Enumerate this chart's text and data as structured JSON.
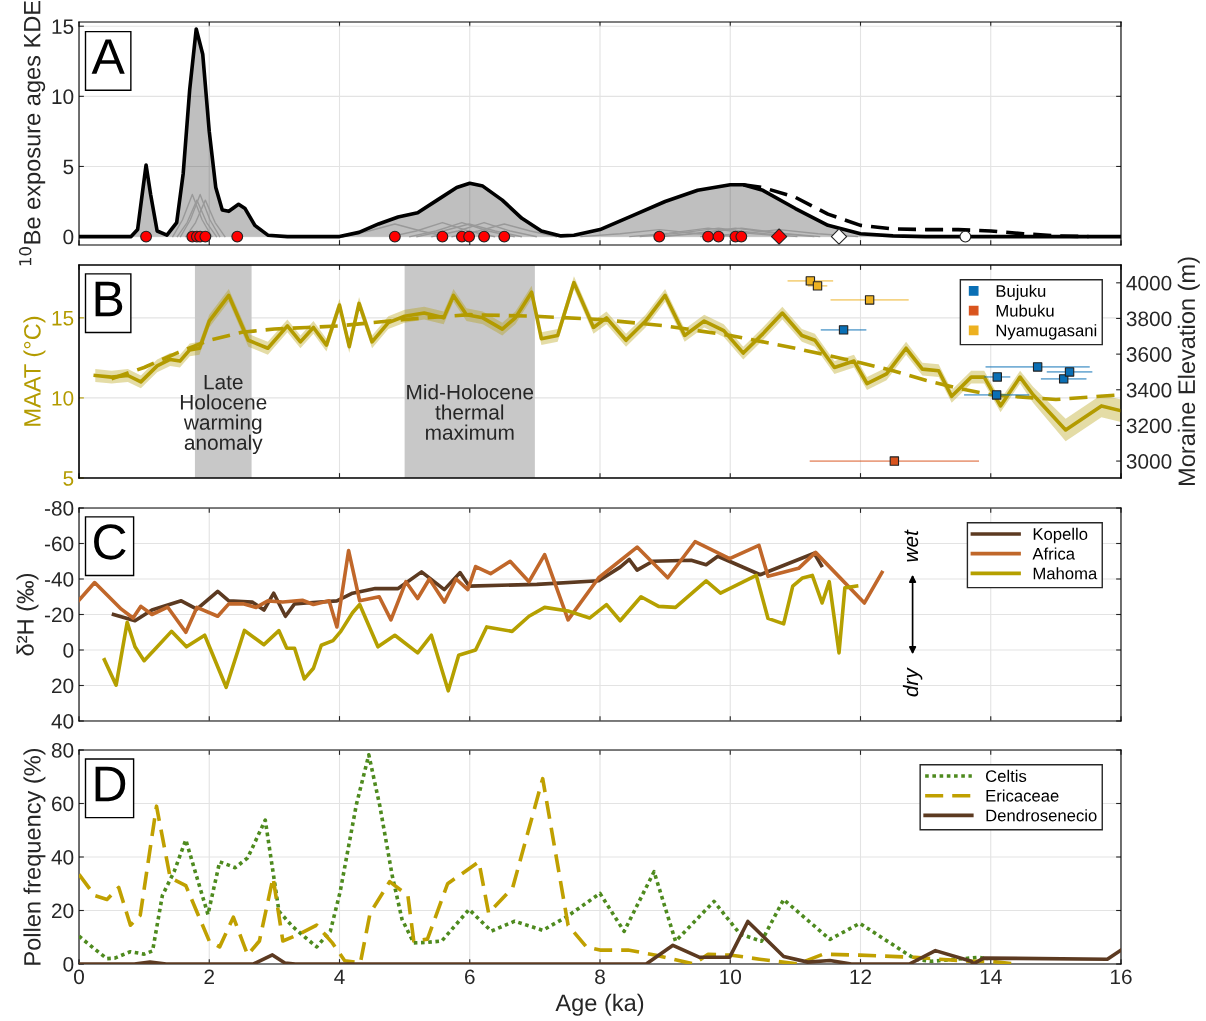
{
  "chart_data": [
    {
      "type": "line",
      "ylabel": "$^{10}$Be exposure ages KDE",
      "xlim": [
        0,
        16
      ],
      "xticks": [
        0,
        2,
        4,
        6,
        8,
        10,
        12,
        14,
        16
      ],
      "ylim": [
        -0.6,
        15.3
      ],
      "yticks": [
        0,
        5,
        10,
        15
      ],
      "grid": true,
      "tick_labels": "y",
      "annotations": [
        "A"
      ],
      "series": [
        {
          "type": "line",
          "color": "#999999",
          "x": [
            1.44,
            1.59,
            1.74,
            1.89,
            2.04
          ],
          "values": [
            0,
            1.2,
            3.0,
            1.2,
            0
          ]
        },
        {
          "type": "line",
          "color": "#999999",
          "x": [
            1.51,
            1.66,
            1.81,
            1.96,
            2.11
          ],
          "values": [
            0,
            1.0,
            2.6,
            1.0,
            0
          ]
        },
        {
          "type": "line",
          "color": "#999999",
          "x": [
            1.56,
            1.71,
            1.86,
            2.01,
            2.16
          ],
          "values": [
            0,
            1.2,
            3.0,
            1.2,
            0
          ]
        },
        {
          "type": "line",
          "color": "#999999",
          "x": [
            1.64,
            1.79,
            1.94,
            2.09,
            2.24
          ],
          "values": [
            0,
            1.0,
            2.6,
            1.0,
            0
          ]
        },
        {
          "type": "line",
          "color": "#999999",
          "x": [
            4.05,
            4.45,
            4.85,
            5.25,
            5.65
          ],
          "values": [
            0,
            0.4,
            0.9,
            0.4,
            0
          ]
        },
        {
          "type": "line",
          "color": "#999999",
          "x": [
            4.78,
            5.18,
            5.58,
            5.98,
            6.38
          ],
          "values": [
            0,
            0.4,
            1.0,
            0.4,
            0
          ]
        },
        {
          "type": "line",
          "color": "#999999",
          "x": [
            5.08,
            5.48,
            5.88,
            6.28,
            6.68
          ],
          "values": [
            0,
            0.4,
            1.0,
            0.4,
            0
          ]
        },
        {
          "type": "line",
          "color": "#999999",
          "x": [
            5.19,
            5.59,
            5.99,
            6.39,
            6.79
          ],
          "values": [
            0,
            0.4,
            0.9,
            0.4,
            0
          ]
        },
        {
          "type": "line",
          "color": "#999999",
          "x": [
            5.42,
            5.82,
            6.22,
            6.62,
            7.02
          ],
          "values": [
            0,
            0.4,
            1.0,
            0.4,
            0
          ]
        },
        {
          "type": "line",
          "color": "#999999",
          "x": [
            5.73,
            6.13,
            6.53,
            6.93,
            7.33
          ],
          "values": [
            0,
            0.4,
            0.9,
            0.4,
            0
          ]
        },
        {
          "type": "line",
          "color": "#999999",
          "x": [
            7.71,
            8.31,
            8.91,
            9.51,
            10.11
          ],
          "values": [
            0,
            0.2,
            0.5,
            0.2,
            0
          ]
        },
        {
          "type": "line",
          "color": "#999999",
          "x": [
            8.46,
            9.06,
            9.66,
            10.26,
            10.86
          ],
          "values": [
            0,
            0.25,
            0.6,
            0.25,
            0
          ]
        },
        {
          "type": "line",
          "color": "#999999",
          "x": [
            8.62,
            9.22,
            9.82,
            10.42,
            11.02
          ],
          "values": [
            0,
            0.25,
            0.6,
            0.25,
            0
          ]
        },
        {
          "type": "line",
          "color": "#999999",
          "x": [
            8.88,
            9.48,
            10.08,
            10.68,
            11.28
          ],
          "values": [
            0,
            0.25,
            0.6,
            0.25,
            0
          ]
        },
        {
          "type": "line",
          "color": "#999999",
          "x": [
            8.97,
            9.57,
            10.17,
            10.77,
            11.37
          ],
          "values": [
            0,
            0.25,
            0.6,
            0.25,
            0
          ]
        },
        {
          "type": "line",
          "color": "#999999",
          "x": [
            9.55,
            10.15,
            10.75,
            11.35,
            11.95
          ],
          "values": [
            0,
            0.2,
            0.5,
            0.2,
            0
          ]
        },
        {
          "type": "area",
          "color": "#000000",
          "x": [
            0,
            0.8,
            0.9,
            0.97,
            1.03,
            1.1,
            1.2,
            1.35,
            1.5,
            1.6,
            1.7,
            1.8,
            1.9,
            2.0,
            2.1,
            2.2,
            2.3,
            2.45,
            2.55,
            2.7,
            2.9,
            3.2,
            4.0,
            4.3,
            4.6,
            4.9,
            5.2,
            5.5,
            5.8,
            6.0,
            6.2,
            6.5,
            6.8,
            7.1,
            7.4,
            7.6,
            8.0,
            8.5,
            9.0,
            9.5,
            10.0,
            10.2,
            10.5,
            11.0,
            11.5,
            12.0,
            12.5,
            13.0,
            16.0
          ],
          "values": [
            0,
            0,
            0.5,
            3.0,
            5.1,
            3.0,
            0.4,
            0.1,
            1.0,
            4.5,
            10.5,
            14.8,
            13.0,
            7.5,
            3.5,
            1.9,
            1.8,
            2.3,
            2.0,
            0.8,
            0.1,
            0,
            0,
            0.3,
            0.9,
            1.4,
            1.7,
            2.6,
            3.5,
            3.8,
            3.6,
            2.6,
            1.3,
            0.4,
            0.05,
            0.1,
            0.5,
            1.5,
            2.5,
            3.3,
            3.7,
            3.7,
            3.3,
            2.0,
            0.8,
            0.2,
            0.05,
            0,
            0
          ]
        },
        {
          "type": "line",
          "color": "#000000",
          "line_style": "dashed",
          "x": [
            10.2,
            10.5,
            11.0,
            11.5,
            12.0,
            12.5,
            13.0,
            13.5,
            14.0,
            14.5,
            15.0,
            15.5
          ],
          "values": [
            3.7,
            3.5,
            2.8,
            1.6,
            0.8,
            0.55,
            0.5,
            0.5,
            0.4,
            0.2,
            0.05,
            0
          ]
        },
        {
          "type": "scatter",
          "color": "#ff0000",
          "marker": "circle",
          "x": [
            1.03,
            1.74,
            1.81,
            1.86,
            1.94,
            2.43,
            4.85,
            5.58,
            5.88,
            5.99,
            6.22,
            6.53,
            8.91,
            9.66,
            9.82,
            10.08,
            10.17
          ],
          "values": [
            0,
            0,
            0,
            0,
            0,
            0,
            0,
            0,
            0,
            0,
            0,
            0,
            0,
            0,
            0,
            0,
            0
          ]
        },
        {
          "type": "scatter",
          "color": "#ff0000",
          "marker": "diamond",
          "x": [
            10.75
          ],
          "values": [
            0
          ]
        },
        {
          "type": "scatter",
          "color": "#ffffff",
          "marker": "diamond",
          "x": [
            11.67
          ],
          "values": [
            0
          ]
        },
        {
          "type": "scatter",
          "color": "#ffffff",
          "marker": "circle",
          "x": [
            13.61
          ],
          "values": [
            0
          ]
        }
      ]
    },
    {
      "type": "line",
      "ylabel": "MAAT (°C)",
      "y2label": "Moraine Elevation (m)",
      "xlim": [
        0,
        16
      ],
      "xticks": [
        0,
        2,
        4,
        6,
        8,
        10,
        12,
        14,
        16
      ],
      "ylim": [
        5,
        18.3
      ],
      "yticks": [
        5,
        10,
        15
      ],
      "y2lim": [
        2905,
        4100
      ],
      "y2ticks": [
        3000,
        3200,
        3400,
        3600,
        3800,
        4000
      ],
      "grid": true,
      "tick_labels": "y",
      "legend": "top right",
      "annotations": [
        "B"
      ],
      "bands": [
        {
          "axis": "x",
          "from": 1.78,
          "to": 2.65,
          "label": "Late\nHolocene\nwarming\nanomaly",
          "color": "#c8c8c8"
        },
        {
          "axis": "x",
          "from": 5.0,
          "to": 7.0,
          "label": "Mid-Holocene\nthermal\nmaximum",
          "color": "#c8c8c8"
        }
      ],
      "series": [
        {
          "type": "line",
          "color": "#b39b00",
          "x": [
            0.25,
            0.5,
            0.75,
            0.95,
            1.2,
            1.4,
            1.55,
            1.7,
            1.85,
            2.0,
            2.3,
            2.6,
            2.9,
            3.2,
            3.4,
            3.6,
            3.8,
            4.0,
            4.15,
            4.3,
            4.5,
            4.75,
            5.0,
            5.3,
            5.6,
            5.75,
            5.95,
            6.2,
            6.5,
            6.7,
            6.95,
            7.1,
            7.35,
            7.6,
            7.9,
            8.1,
            8.4,
            8.7,
            9.0,
            9.3,
            9.6,
            9.9,
            10.2,
            10.5,
            10.8,
            11.1,
            11.3,
            11.6,
            11.9,
            12.1,
            12.4,
            12.7,
            12.95,
            13.2,
            13.4,
            13.7,
            13.9,
            14.15,
            14.45,
            14.65,
            15.15,
            15.7,
            16.0
          ],
          "values": [
            11.4,
            11.3,
            11.4,
            11.0,
            12.0,
            12.4,
            12.3,
            13.0,
            13.1,
            14.8,
            16.4,
            13.6,
            13.1,
            14.5,
            13.5,
            14.4,
            13.3,
            15.8,
            13.2,
            15.9,
            13.5,
            14.7,
            15.1,
            15.3,
            15.0,
            16.4,
            15.2,
            15.0,
            14.3,
            15.0,
            16.6,
            13.7,
            13.9,
            17.2,
            14.4,
            15.0,
            13.6,
            14.8,
            16.4,
            13.9,
            14.8,
            14.2,
            12.8,
            14.0,
            15.3,
            13.9,
            13.6,
            11.9,
            12.3,
            10.9,
            11.5,
            13.1,
            11.8,
            11.7,
            10.1,
            11.3,
            11.3,
            9.5,
            11.3,
            10.2,
            8.0,
            9.5,
            9.2
          ],
          "lower": [
            11.0,
            10.9,
            11.0,
            10.6,
            11.6,
            12.0,
            11.9,
            12.6,
            12.7,
            14.4,
            16.0,
            13.2,
            12.7,
            14.1,
            13.1,
            14.0,
            12.9,
            15.4,
            12.8,
            15.5,
            13.1,
            14.3,
            14.7,
            14.9,
            14.6,
            16.0,
            14.8,
            14.6,
            13.9,
            14.6,
            16.2,
            13.3,
            13.5,
            16.8,
            14.0,
            14.6,
            13.2,
            14.4,
            16.0,
            13.5,
            14.4,
            13.8,
            12.4,
            13.6,
            14.9,
            13.5,
            13.2,
            11.5,
            11.9,
            10.5,
            11.1,
            12.7,
            11.4,
            11.3,
            9.7,
            10.9,
            10.9,
            9.1,
            10.9,
            9.7,
            7.3,
            8.8,
            8.5
          ],
          "upper": [
            11.8,
            11.7,
            11.8,
            11.4,
            12.4,
            12.8,
            12.7,
            13.4,
            13.5,
            15.2,
            16.8,
            14.0,
            13.5,
            14.9,
            13.9,
            14.8,
            13.7,
            16.2,
            13.6,
            16.3,
            13.9,
            15.1,
            15.5,
            15.7,
            15.4,
            16.8,
            15.6,
            15.4,
            14.7,
            15.4,
            17.0,
            14.1,
            14.3,
            17.6,
            14.8,
            15.4,
            14.0,
            15.2,
            16.8,
            14.3,
            15.2,
            14.6,
            13.2,
            14.4,
            15.7,
            14.3,
            14.0,
            12.3,
            12.7,
            11.3,
            11.9,
            13.5,
            12.2,
            12.1,
            10.5,
            11.7,
            11.7,
            9.9,
            11.7,
            10.7,
            8.7,
            10.2,
            9.9
          ]
        },
        {
          "type": "line",
          "color": "#b39b00",
          "line_style": "dashed",
          "x": [
            0.5,
            1.0,
            1.5,
            2.0,
            2.5,
            3.0,
            3.5,
            4.0,
            5.0,
            6.0,
            7.0,
            8.0,
            9.0,
            10.0,
            11.0,
            12.0,
            12.5,
            13.0,
            13.5,
            14.0,
            15.0,
            16.0
          ],
          "values": [
            11.2,
            11.9,
            12.8,
            13.6,
            14.1,
            14.3,
            14.4,
            14.5,
            14.9,
            15.2,
            15.1,
            14.9,
            14.5,
            13.9,
            13.1,
            12.2,
            11.7,
            11.1,
            10.6,
            10.2,
            9.9,
            10.2
          ]
        },
        {
          "type": "scatter",
          "name": "Bujuku",
          "color": "#0a6fb5",
          "marker": "square",
          "axis": "y2",
          "x": [
            11.74,
            14.1,
            14.09,
            14.72,
            15.12,
            15.21
          ],
          "values": [
            3736,
            3472,
            3371,
            3528,
            3461,
            3500
          ],
          "xerrors": [
            0.35,
            0.2,
            0.5,
            0.8,
            0.35,
            0.35
          ]
        },
        {
          "type": "scatter",
          "name": "Mubuku",
          "color": "#d9541e",
          "marker": "square",
          "axis": "y2",
          "x": [
            12.52
          ],
          "values": [
            3000
          ],
          "xerrors": [
            1.3
          ]
        },
        {
          "type": "scatter",
          "name": "Nyamugasani",
          "color": "#edb120",
          "marker": "square",
          "axis": "y2",
          "x": [
            11.23,
            11.34,
            12.14
          ],
          "values": [
            4011,
            3983,
            3904
          ],
          "xerrors": [
            0.35,
            0.15,
            0.6
          ]
        }
      ]
    },
    {
      "type": "line",
      "ylabel": "δ²H (‰)",
      "xlim": [
        0,
        16
      ],
      "xticks": [
        0,
        2,
        4,
        6,
        8,
        10,
        12,
        14,
        16
      ],
      "ylim": [
        40,
        -80
      ],
      "yticks": [
        -80,
        -60,
        -40,
        -20,
        0,
        20,
        40
      ],
      "grid": true,
      "tick_labels": "y",
      "legend": "top right",
      "annotations": [
        "C",
        "wet",
        "dry"
      ],
      "series": [
        {
          "type": "line",
          "name": "Kopello",
          "color": "#5c3a21",
          "x": [
            0.53,
            0.86,
            1.12,
            1.57,
            1.81,
            2.13,
            2.3,
            2.66,
            2.84,
            2.99,
            3.17,
            3.31,
            3.49,
            3.96,
            4.2,
            4.55,
            4.9,
            5.26,
            5.61,
            5.85,
            5.99,
            7.03,
            7.98,
            8.31,
            8.45,
            8.57,
            8.81,
            9.4,
            9.63,
            9.81,
            10.46,
            11.29,
            11.4
          ],
          "values": [
            -20,
            -16.5,
            -22.5,
            -27.7,
            -23,
            -33,
            -27.7,
            -27,
            -22.5,
            -32,
            -19,
            -26,
            -26.5,
            -27.7,
            -32,
            -34.6,
            -34.6,
            -44,
            -34,
            -43.6,
            -36,
            -37,
            -39,
            -46.7,
            -51,
            -45,
            -50,
            -50.6,
            -48,
            -52.8,
            -42.4,
            -54.5,
            -47.6
          ]
        },
        {
          "type": "line",
          "name": "Africa",
          "color": "#c0672a",
          "x": [
            0,
            0.24,
            0.65,
            0.83,
            0.95,
            1.12,
            1.36,
            1.64,
            1.81,
            2.13,
            2.3,
            2.52,
            2.72,
            2.9,
            3.13,
            3.43,
            3.6,
            3.84,
            3.96,
            4.14,
            4.31,
            4.61,
            4.79,
            5.02,
            5.2,
            5.38,
            5.61,
            5.79,
            5.97,
            6.09,
            6.32,
            6.62,
            6.91,
            7.15,
            7.51,
            7.98,
            8.57,
            9.04,
            9.46,
            9.99,
            10.44,
            10.58,
            11.05,
            11.31,
            12.06,
            12.33
          ],
          "values": [
            -28,
            -38,
            -23,
            -18,
            -24.6,
            -20,
            -24.2,
            -10,
            -24,
            -19,
            -26,
            -26,
            -24,
            -27.7,
            -27,
            -28,
            -25.6,
            -27.7,
            -13,
            -56,
            -27.7,
            -30,
            -17,
            -38.5,
            -29,
            -40,
            -27,
            -40,
            -34,
            -47,
            -43,
            -50,
            -38.5,
            -53.7,
            -17,
            -40.7,
            -58,
            -40.7,
            -61,
            -51.5,
            -59,
            -41.5,
            -46,
            -55,
            -26.5,
            -43.7
          ]
        },
        {
          "type": "line",
          "name": "Mahoma",
          "color": "#b5a000",
          "x": [
            0.39,
            0.57,
            0.74,
            0.86,
            1.0,
            1.18,
            1.42,
            1.65,
            1.93,
            2.26,
            2.54,
            2.84,
            3.07,
            3.19,
            3.31,
            3.46,
            3.6,
            3.72,
            3.9,
            4.02,
            4.2,
            4.31,
            4.59,
            4.85,
            5.2,
            5.41,
            5.67,
            5.83,
            6.09,
            6.26,
            6.65,
            6.91,
            7.15,
            7.51,
            7.84,
            8.1,
            8.31,
            8.63,
            8.9,
            9.16,
            9.63,
            9.85,
            10.4,
            10.58,
            10.82,
            10.96,
            11.11,
            11.26,
            11.41,
            11.52,
            11.67,
            11.76,
            11.94
          ],
          "values": [
            5.5,
            19.8,
            -15.6,
            -1.8,
            6,
            -1,
            -10.5,
            -1.8,
            -8.3,
            21,
            -11,
            -3,
            -10.9,
            -1,
            -1,
            16.3,
            10.3,
            -2.7,
            -5.3,
            -10.5,
            -21,
            -25.6,
            -1.8,
            -8.3,
            1.6,
            -8.3,
            23,
            3,
            0,
            -13,
            -10.5,
            -19,
            -24,
            -22,
            -18,
            -25.6,
            -16.5,
            -30,
            -24.6,
            -24,
            -39,
            -32,
            -42,
            -17.8,
            -14.7,
            -36,
            -40.6,
            -42,
            -26.5,
            -38.5,
            1.6,
            -35,
            -36
          ]
        }
      ]
    },
    {
      "type": "line",
      "ylabel": "Pollen frequency (%)",
      "xlabel": "Age (ka)",
      "xlim": [
        0,
        16
      ],
      "xticks": [
        0,
        2,
        4,
        6,
        8,
        10,
        12,
        14,
        16
      ],
      "ylim": [
        0,
        80
      ],
      "yticks": [
        0,
        20,
        40,
        60,
        80
      ],
      "grid": true,
      "legend": "top right",
      "annotations": [
        "D"
      ],
      "series": [
        {
          "type": "line",
          "name": "Celtis",
          "color": "#4e8a1e",
          "line_style": "dotted",
          "x": [
            0,
            0.24,
            0.43,
            0.55,
            0.79,
            1.0,
            1.13,
            1.28,
            1.46,
            1.64,
            1.82,
            1.98,
            2.16,
            2.4,
            2.59,
            2.86,
            3.07,
            3.28,
            3.47,
            3.65,
            3.86,
            4.01,
            4.26,
            4.45,
            4.62,
            4.81,
            4.96,
            5.14,
            5.35,
            5.57,
            5.78,
            5.99,
            6.33,
            6.69,
            7.12,
            7.48,
            8.0,
            8.37,
            8.83,
            9.16,
            9.75,
            10.15,
            10.48,
            10.82,
            11.53,
            11.99,
            12.84,
            13.09,
            13.82,
            13.95
          ],
          "values": [
            10.4,
            5.6,
            2,
            2.2,
            4.6,
            3.7,
            4.9,
            25.6,
            34.5,
            46.4,
            31.6,
            18.5,
            38.2,
            36,
            39.7,
            53.8,
            19.7,
            14,
            10,
            6.4,
            12.3,
            27,
            59.7,
            78.2,
            59,
            33,
            16.7,
            7.9,
            8.1,
            8.6,
            14.5,
            20.4,
            12.3,
            16,
            12.6,
            17.5,
            26.4,
            12.2,
            34.5,
            8.5,
            23.4,
            11.2,
            8.5,
            24.1,
            9.2,
            15.2,
            1.8,
            1,
            2.5,
            1.8
          ]
        },
        {
          "type": "line",
          "name": "Ericaceae",
          "color": "#c0a000",
          "line_style": "dashed",
          "x": [
            0,
            0.24,
            0.43,
            0.61,
            0.79,
            0.94,
            1.19,
            1.4,
            1.64,
            2.0,
            2.16,
            2.37,
            2.59,
            2.77,
            2.98,
            3.13,
            3.35,
            3.65,
            3.89,
            4.08,
            4.32,
            4.47,
            4.77,
            5.05,
            5.14,
            5.35,
            5.66,
            6.14,
            6.29,
            6.66,
            7.12,
            7.51,
            7.79,
            8.0,
            8.43,
            8.86,
            9.44,
            9.66,
            10.02,
            10.45,
            11.04,
            11.43,
            11.99,
            12.84,
            13.21,
            13.7,
            14.0,
            14.38
          ],
          "values": [
            33.5,
            25.6,
            24.1,
            28.6,
            14.5,
            18.2,
            59,
            32.3,
            29.3,
            8.6,
            6.4,
            17.5,
            3.4,
            8.6,
            32.3,
            8.6,
            10.8,
            14.5,
            7.9,
            1.2,
            0.4,
            19,
            30.8,
            25.6,
            8.6,
            9.3,
            30,
            38.2,
            19,
            28.6,
            69.3,
            14.5,
            6.4,
            5.2,
            5.2,
            3.3,
            0,
            3.6,
            3.3,
            1.8,
            0,
            3.7,
            3.3,
            2.5,
            1.8,
            1,
            1,
            0
          ]
        },
        {
          "type": "line",
          "name": "Dendrosenecio",
          "color": "#5c3a21",
          "x": [
            0,
            0.85,
            1.09,
            1.34,
            2.68,
            2.97,
            3.16,
            3.32,
            8.71,
            9.12,
            9.53,
            9.99,
            10.27,
            10.82,
            11.19,
            11.53,
            11.86,
            12.75,
            13.15,
            13.7,
            13.73,
            13.89,
            15.79,
            16.0
          ],
          "values": [
            0,
            0,
            0.7,
            0,
            0,
            3.4,
            0.4,
            0,
            0,
            7,
            2.5,
            2.5,
            15.9,
            2.8,
            0.7,
            1.3,
            0,
            0,
            5,
            1,
            0,
            2.2,
            1.8,
            5.2
          ]
        }
      ]
    }
  ]
}
